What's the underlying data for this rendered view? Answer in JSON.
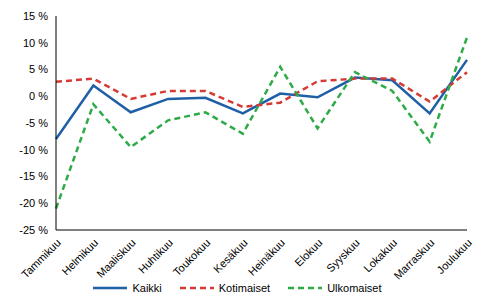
{
  "chart_data": {
    "type": "line",
    "categories": [
      "Tammikuu",
      "Helmikuu",
      "Maaliskuu",
      "Huhtikuu",
      "Toukokuu",
      "Kesäkuu",
      "Heinäkuu",
      "Elokuu",
      "Syyskuu",
      "Lokakuu",
      "Marraskuu",
      "Joulukuu"
    ],
    "series": [
      {
        "name": "Kaikki",
        "color": "#1f5fa6",
        "line_style": "solid",
        "values": [
          -8,
          2,
          -3,
          -0.5,
          -0.3,
          -3.2,
          0.5,
          -0.2,
          3.5,
          3,
          -3.2,
          6.8
        ]
      },
      {
        "name": "Kotimaiset",
        "color": "#d63a35",
        "line_style": "dashed",
        "values": [
          2.7,
          3.3,
          -0.5,
          1,
          1,
          -2,
          -1.2,
          2.8,
          3.3,
          3.3,
          -1,
          4.5
        ]
      },
      {
        "name": "Ulkomaiset",
        "color": "#2eab47",
        "line_style": "dashed",
        "values": [
          -21,
          -1.5,
          -9.5,
          -4.5,
          -3,
          -7,
          5.5,
          -6,
          4.5,
          1,
          -8.5,
          11
        ]
      }
    ],
    "ylim": [
      -25,
      15
    ],
    "yticks": [
      {
        "value": -25,
        "label": "-25 %"
      },
      {
        "value": -20,
        "label": "-20 %"
      },
      {
        "value": -15,
        "label": "-15 %"
      },
      {
        "value": -10,
        "label": "-10 %"
      },
      {
        "value": -5,
        "label": "-5 %"
      },
      {
        "value": 0,
        "label": "0 %"
      },
      {
        "value": 5,
        "label": "5 %"
      },
      {
        "value": 10,
        "label": "10 %"
      },
      {
        "value": 15,
        "label": "15 %"
      }
    ],
    "grid": false,
    "legend": "bottom"
  }
}
